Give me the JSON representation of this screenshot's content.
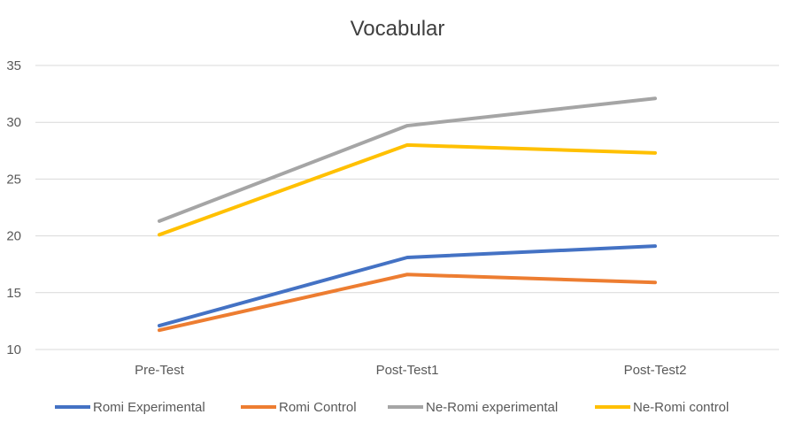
{
  "chart_data": {
    "type": "line",
    "title": "Vocabular",
    "xlabel": "",
    "ylabel": "",
    "categories": [
      "Pre-Test",
      "Post-Test1",
      "Post-Test2"
    ],
    "ylim": [
      10,
      35
    ],
    "yticks": [
      10,
      15,
      20,
      25,
      30,
      35
    ],
    "grid": true,
    "legend_position": "bottom",
    "series": [
      {
        "name": "Romi Experimental",
        "color": "#4472c4",
        "values": [
          12.1,
          18.1,
          19.1
        ]
      },
      {
        "name": "Romi Control",
        "color": "#ed7d31",
        "values": [
          11.7,
          16.6,
          15.9
        ]
      },
      {
        "name": "Ne-Romi experimental",
        "color": "#a5a5a5",
        "values": [
          21.3,
          29.7,
          32.1
        ]
      },
      {
        "name": "Ne-Romi control",
        "color": "#ffc000",
        "values": [
          20.1,
          28.0,
          27.3
        ]
      }
    ]
  }
}
